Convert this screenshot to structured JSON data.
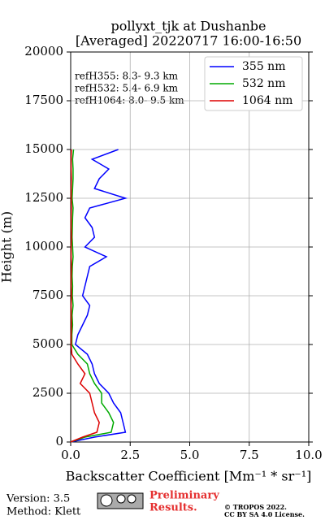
{
  "chart_data": {
    "type": "line",
    "title": [
      "pollyxt_tjk at Dushanbe",
      "[Averaged] 20220717 16:00-16:50"
    ],
    "xlabel": "Backscatter Coefficient [Mm⁻¹ * sr⁻¹]",
    "ylabel": "Height (m)",
    "annotations": [
      "refH355:  8.3- 9.3 km",
      "refH532:  5.4- 6.9 km",
      "refH1064:  8.0- 9.5 km"
    ],
    "y": [
      0,
      250,
      500,
      1000,
      1500,
      2000,
      2500,
      3000,
      3500,
      4000,
      4500,
      5000,
      5500,
      6000,
      6500,
      7000,
      7500,
      8000,
      8500,
      9000,
      9500,
      10000,
      10500,
      11000,
      11500,
      12000,
      12500,
      13000,
      13500,
      14000,
      14500,
      15000
    ],
    "series": [
      {
        "name": "355 nm",
        "color": "#0000ff",
        "values": [
          0.0,
          1.0,
          2.3,
          2.2,
          2.1,
          1.8,
          1.6,
          1.2,
          1.0,
          0.9,
          0.7,
          0.2,
          0.3,
          0.5,
          0.7,
          0.8,
          0.5,
          0.6,
          0.7,
          0.8,
          1.5,
          0.6,
          1.0,
          0.9,
          0.6,
          0.8,
          2.3,
          1.0,
          1.2,
          1.6,
          0.9,
          2.0
        ]
      },
      {
        "name": "532 nm",
        "color": "#00aa00",
        "values": [
          0.0,
          0.6,
          1.7,
          1.8,
          1.6,
          1.3,
          1.3,
          1.0,
          0.8,
          0.7,
          0.3,
          0.05,
          0.05,
          0.08,
          0.06,
          0.1,
          0.07,
          0.08,
          0.06,
          0.07,
          0.1,
          0.08,
          0.06,
          0.07,
          0.08,
          0.1,
          0.06,
          0.08,
          0.1,
          0.1,
          0.08,
          0.12
        ]
      },
      {
        "name": "1064 nm",
        "color": "#dd0000",
        "values": [
          0.0,
          0.5,
          1.1,
          1.2,
          1.0,
          0.9,
          0.8,
          0.4,
          0.6,
          0.3,
          0.05,
          0.02,
          0.02,
          0.03,
          0.02,
          0.02,
          0.03,
          0.02,
          0.02,
          0.03,
          0.02,
          0.02,
          0.03,
          0.02,
          0.02,
          0.03,
          0.02,
          0.02,
          0.03,
          0.02,
          0.02,
          0.03
        ]
      }
    ],
    "xlim": [
      0,
      10
    ],
    "ylim": [
      0,
      20000
    ],
    "xticks": [
      {
        "value": 0,
        "label": "0.0"
      },
      {
        "value": 2.5,
        "label": "2.5"
      },
      {
        "value": 5,
        "label": "5.0"
      },
      {
        "value": 7.5,
        "label": "7.5"
      },
      {
        "value": 10,
        "label": "10.0"
      }
    ],
    "yticks": [
      0,
      2500,
      5000,
      7500,
      10000,
      12500,
      15000,
      17500,
      20000
    ],
    "grid": true,
    "legend": "upper right"
  },
  "footer": {
    "version": "Version: 3.5",
    "method": "Method: Klett",
    "status": [
      "Preliminary",
      "Results."
    ],
    "copyright": [
      "© TROPOS 2022.",
      "CC BY SA 4.0 License."
    ]
  }
}
